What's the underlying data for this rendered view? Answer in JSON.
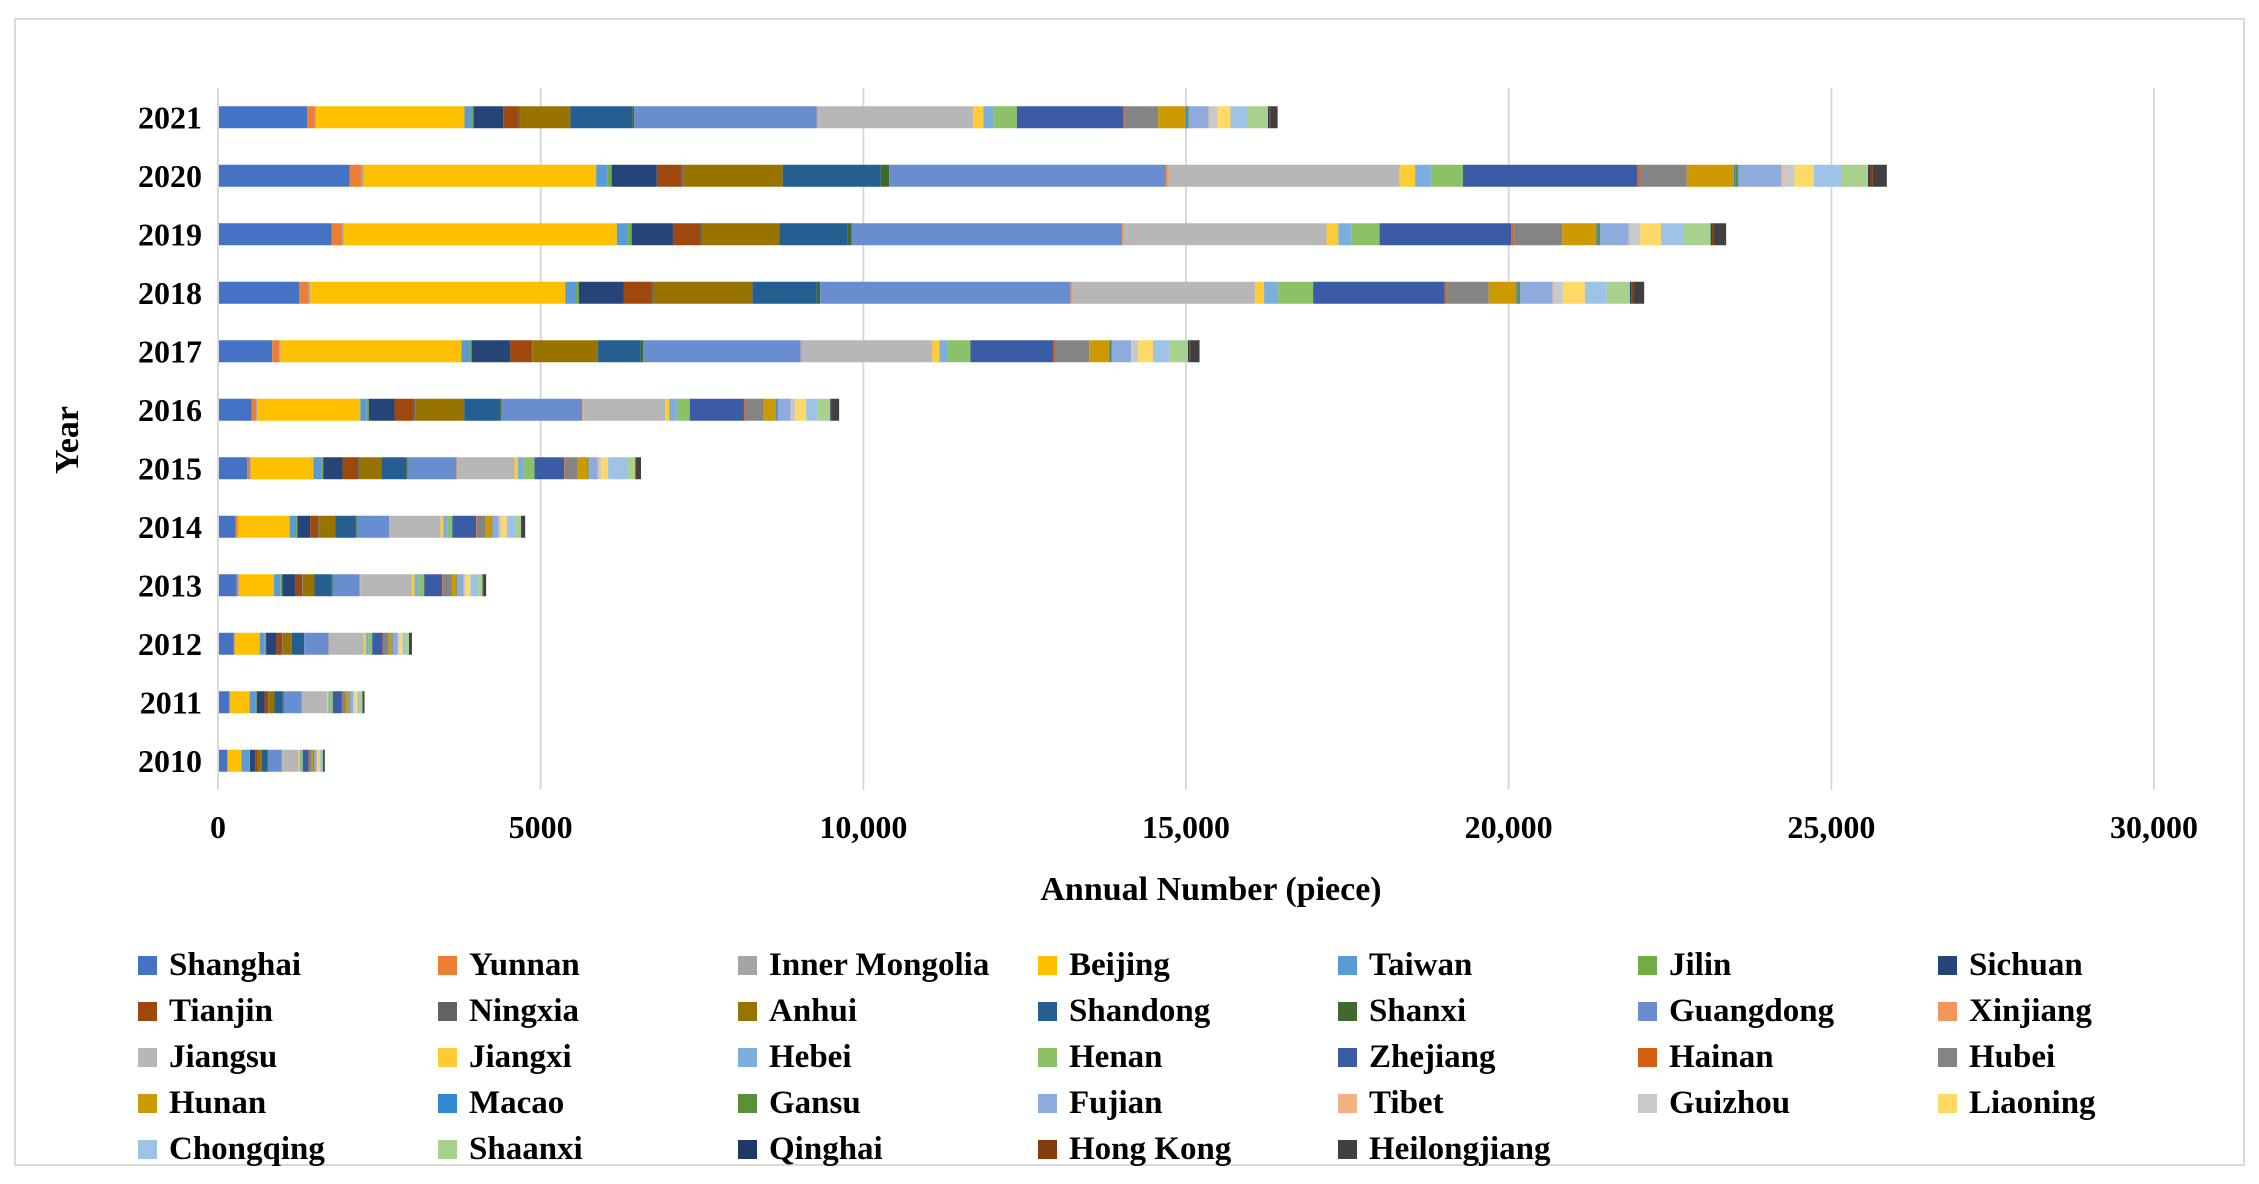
{
  "chart_data": {
    "type": "bar",
    "orientation": "horizontal",
    "stacked": true,
    "title": "",
    "xlabel": "Annual Number (piece)",
    "ylabel": "Year",
    "xlim": [
      0,
      30000
    ],
    "xticks": [
      0,
      5000,
      10000,
      15000,
      20000,
      25000,
      30000
    ],
    "xtick_labels": [
      "0",
      "5000",
      "10,000",
      "15,000",
      "20,000",
      "25,000",
      "30,000"
    ],
    "grid": "vertical",
    "legend_position": "bottom",
    "categories": [
      "2021",
      "2020",
      "2019",
      "2018",
      "2017",
      "2016",
      "2015",
      "2014",
      "2013",
      "2012",
      "2011",
      "2010"
    ],
    "series": [
      {
        "name": "Shanghai",
        "color": "#4472c4",
        "values": [
          1380,
          2040,
          1760,
          1260,
          840,
          520,
          450,
          270,
          290,
          240,
          170,
          140
        ]
      },
      {
        "name": "Yunnan",
        "color": "#ed7d31",
        "values": [
          120,
          180,
          160,
          140,
          110,
          70,
          50,
          30,
          25,
          20,
          15,
          10
        ]
      },
      {
        "name": "Inner Mongolia",
        "color": "#a5a5a5",
        "values": [
          20,
          40,
          30,
          30,
          20,
          15,
          10,
          10,
          10,
          5,
          5,
          5
        ]
      },
      {
        "name": "Beijing",
        "color": "#ffc000",
        "values": [
          2300,
          3600,
          4230,
          3950,
          2800,
          1600,
          970,
          800,
          540,
          380,
          300,
          210
        ]
      },
      {
        "name": "Taiwan",
        "color": "#5b9bd5",
        "values": [
          100,
          180,
          170,
          160,
          120,
          100,
          120,
          100,
          100,
          80,
          90,
          120
        ]
      },
      {
        "name": "Jilin",
        "color": "#70ad47",
        "values": [
          40,
          60,
          60,
          50,
          40,
          30,
          30,
          20,
          30,
          20,
          20,
          10
        ]
      },
      {
        "name": "Sichuan",
        "color": "#264478",
        "values": [
          460,
          700,
          640,
          700,
          600,
          400,
          300,
          200,
          210,
          160,
          120,
          80
        ]
      },
      {
        "name": "Tianjin",
        "color": "#9e480e",
        "values": [
          240,
          380,
          420,
          420,
          320,
          300,
          240,
          120,
          100,
          90,
          60,
          40
        ]
      },
      {
        "name": "Ningxia",
        "color": "#636363",
        "values": [
          20,
          30,
          30,
          30,
          20,
          20,
          15,
          10,
          10,
          10,
          5,
          5
        ]
      },
      {
        "name": "Anhui",
        "color": "#997300",
        "values": [
          780,
          1540,
          1200,
          1540,
          1020,
          760,
          350,
          260,
          180,
          140,
          90,
          60
        ]
      },
      {
        "name": "Shandong",
        "color": "#255e91",
        "values": [
          960,
          1520,
          1060,
          1000,
          660,
          540,
          380,
          310,
          260,
          180,
          130,
          90
        ]
      },
      {
        "name": "Shanxi",
        "color": "#43682b",
        "values": [
          30,
          130,
          60,
          50,
          40,
          30,
          20,
          20,
          20,
          10,
          10,
          10
        ]
      },
      {
        "name": "Guangdong",
        "color": "#698ed0",
        "values": [
          2830,
          4290,
          4190,
          3880,
          2440,
          1260,
          760,
          500,
          420,
          380,
          280,
          210
        ]
      },
      {
        "name": "Xinjiang",
        "color": "#f1975a",
        "values": [
          20,
          40,
          30,
          30,
          20,
          15,
          10,
          10,
          10,
          5,
          5,
          5
        ]
      },
      {
        "name": "Jiangsu",
        "color": "#b7b7b7",
        "values": [
          2400,
          3580,
          3140,
          2830,
          2020,
          1270,
          890,
          790,
          800,
          540,
          390,
          250
        ]
      },
      {
        "name": "Jiangxi",
        "color": "#ffcd33",
        "values": [
          160,
          240,
          180,
          140,
          110,
          60,
          50,
          40,
          40,
          30,
          20,
          20
        ]
      },
      {
        "name": "Hebei",
        "color": "#7cafdd",
        "values": [
          160,
          260,
          200,
          220,
          130,
          120,
          100,
          60,
          60,
          40,
          30,
          20
        ]
      },
      {
        "name": "Henan",
        "color": "#8cc168",
        "values": [
          360,
          480,
          440,
          540,
          350,
          200,
          160,
          80,
          90,
          60,
          40,
          30
        ]
      },
      {
        "name": "Zhejiang",
        "color": "#3a5ba6",
        "values": [
          1650,
          2700,
          2040,
          2040,
          1290,
          840,
          460,
          370,
          280,
          160,
          140,
          90
        ]
      },
      {
        "name": "Hainan",
        "color": "#d65e13",
        "values": [
          20,
          30,
          30,
          30,
          20,
          15,
          10,
          10,
          10,
          5,
          5,
          5
        ]
      },
      {
        "name": "Hubei",
        "color": "#848484",
        "values": [
          520,
          740,
          760,
          650,
          530,
          290,
          200,
          140,
          140,
          90,
          60,
          40
        ]
      },
      {
        "name": "Hunan",
        "color": "#cc9a00",
        "values": [
          430,
          730,
          530,
          430,
          310,
          190,
          150,
          90,
          70,
          50,
          40,
          30
        ]
      },
      {
        "name": "Macao",
        "color": "#3287d0",
        "values": [
          20,
          30,
          30,
          30,
          20,
          15,
          10,
          5,
          5,
          5,
          5,
          5
        ]
      },
      {
        "name": "Gansu",
        "color": "#5b8f3a",
        "values": [
          20,
          40,
          30,
          30,
          20,
          15,
          10,
          5,
          5,
          5,
          5,
          5
        ]
      },
      {
        "name": "Fujian",
        "color": "#8faadc",
        "values": [
          310,
          660,
          440,
          500,
          300,
          200,
          140,
          100,
          100,
          80,
          60,
          40
        ]
      },
      {
        "name": "Tibet",
        "color": "#f4b183",
        "values": [
          20,
          30,
          20,
          20,
          10,
          10,
          10,
          5,
          5,
          5,
          5,
          5
        ]
      },
      {
        "name": "Guizhou",
        "color": "#c9c9c9",
        "values": [
          120,
          180,
          160,
          140,
          100,
          60,
          40,
          30,
          30,
          20,
          20,
          10
        ]
      },
      {
        "name": "Liaoning",
        "color": "#ffd966",
        "values": [
          200,
          300,
          320,
          340,
          230,
          170,
          110,
          90,
          70,
          50,
          40,
          30
        ]
      },
      {
        "name": "Chongqing",
        "color": "#9dc3e6",
        "values": [
          270,
          420,
          350,
          340,
          260,
          170,
          300,
          140,
          120,
          50,
          40,
          20
        ]
      },
      {
        "name": "Shaanxi",
        "color": "#a9d18e",
        "values": [
          310,
          420,
          420,
          360,
          280,
          200,
          120,
          80,
          70,
          50,
          40,
          30
        ]
      },
      {
        "name": "Qinghai",
        "color": "#1f3864",
        "values": [
          20,
          30,
          20,
          20,
          20,
          10,
          10,
          5,
          5,
          5,
          5,
          5
        ]
      },
      {
        "name": "Hong Kong",
        "color": "#843c0c",
        "values": [
          20,
          40,
          30,
          30,
          20,
          20,
          10,
          10,
          10,
          10,
          5,
          5
        ]
      },
      {
        "name": "Heilongjiang",
        "color": "#404040",
        "values": [
          110,
          220,
          190,
          170,
          140,
          110,
          70,
          50,
          40,
          30,
          20,
          20
        ]
      }
    ]
  }
}
